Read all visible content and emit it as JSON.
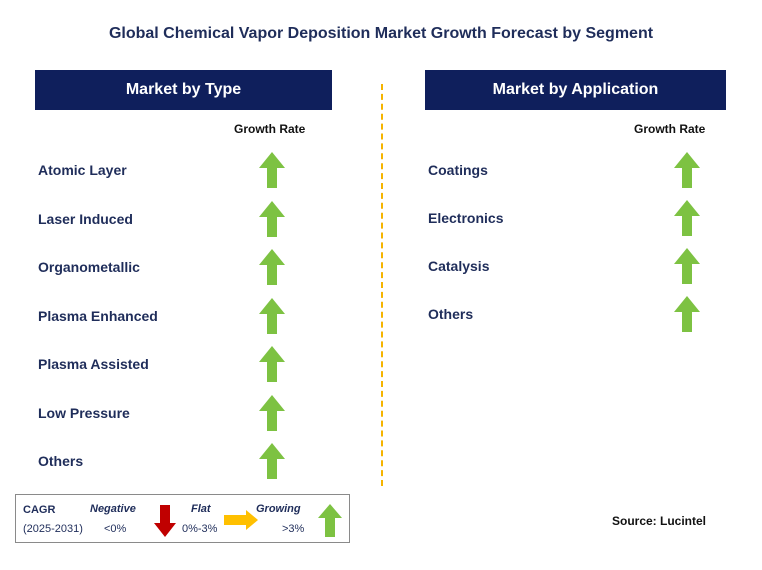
{
  "title": "Global Chemical Vapor Deposition Market Growth Forecast by Segment",
  "chart_data": {
    "type": "table",
    "panels": [
      {
        "header": "Market by Type",
        "column_label": "Growth Rate",
        "segments": [
          {
            "name": "Atomic Layer",
            "growth": "growing"
          },
          {
            "name": "Laser Induced",
            "growth": "growing"
          },
          {
            "name": "Organometallic",
            "growth": "growing"
          },
          {
            "name": "Plasma Enhanced",
            "growth": "growing"
          },
          {
            "name": "Plasma Assisted",
            "growth": "growing"
          },
          {
            "name": "Low Pressure",
            "growth": "growing"
          },
          {
            "name": "Others",
            "growth": "growing"
          }
        ]
      },
      {
        "header": "Market by Application",
        "column_label": "Growth Rate",
        "segments": [
          {
            "name": "Coatings",
            "growth": "growing"
          },
          {
            "name": "Electronics",
            "growth": "growing"
          },
          {
            "name": "Catalysis",
            "growth": "growing"
          },
          {
            "name": "Others",
            "growth": "growing"
          }
        ]
      }
    ],
    "legend": {
      "cagr_label": "CAGR",
      "period": "(2025-2031)",
      "negative": {
        "label": "Negative",
        "range": "<0%",
        "color": "#c00000"
      },
      "flat": {
        "label": "Flat",
        "range": "0%-3%",
        "color": "#ffc000"
      },
      "growing": {
        "label": "Growing",
        "range": ">3%",
        "color": "#7dc242"
      }
    }
  },
  "source": "Source: Lucintel",
  "colors": {
    "header_bg": "#0f1f5c",
    "text": "#1f2d5a",
    "divider": "#f5b400",
    "growing_arrow": "#7dc242"
  }
}
